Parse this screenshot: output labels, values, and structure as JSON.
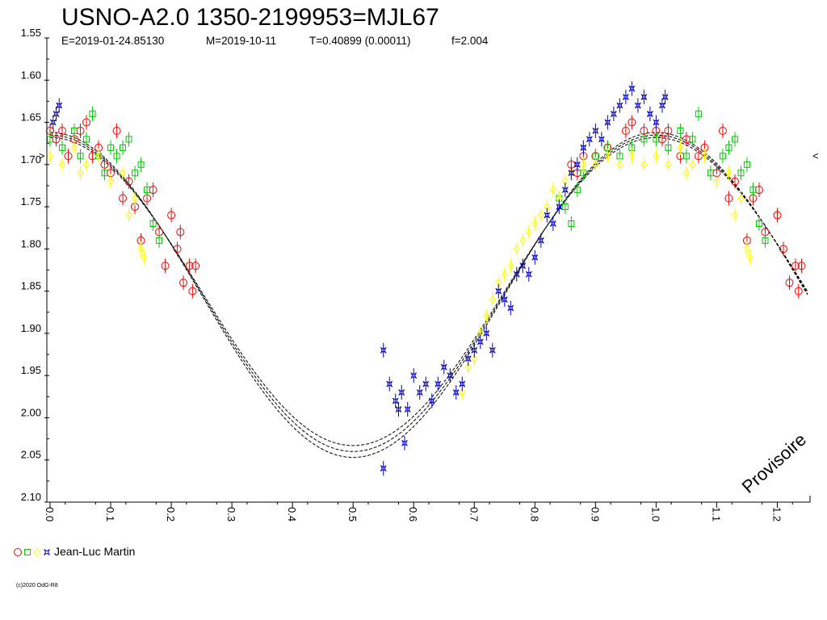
{
  "chart_data": {
    "type": "scatter",
    "title": "USNO-A2.0 1350-2199953=MJL67",
    "subtitle": {
      "epoch": "E=2019-01-24.85130",
      "mean_date": "M=2019-10-11",
      "period": "T=0.40899 (0.00011)",
      "frequency": "f=2.004"
    },
    "xlabel": "",
    "ylabel": "",
    "xlim": [
      0.0,
      1.25
    ],
    "ylim": [
      1.55,
      2.1
    ],
    "y_inverted": true,
    "grid": false,
    "x_ticks": [
      "0.0",
      "0.1",
      "0.2",
      "0.3",
      "0.4",
      "0.5",
      "0.6",
      "0.7",
      "0.8",
      "0.9",
      "1.0",
      "1.1",
      "1.2"
    ],
    "y_ticks": [
      "1.55",
      "1.60",
      "1.65",
      "1.70",
      "1.75",
      "1.80",
      "1.85",
      "1.90",
      "1.95",
      "2.00",
      "2.05",
      "2.10"
    ],
    "max_marker_mag": 1.69,
    "fit_curve": {
      "shape": "sinusoid",
      "max_mag": 1.665,
      "min_mag": 2.04,
      "max_phase": 0.0,
      "min_phase": 0.5,
      "envelope": 0.005
    },
    "series": [
      {
        "name": "",
        "color": "#ff0000",
        "marker": "circle",
        "points": [
          [
            0.0,
            1.66
          ],
          [
            0.01,
            1.67
          ],
          [
            0.02,
            1.66
          ],
          [
            0.03,
            1.69
          ],
          [
            0.04,
            1.67
          ],
          [
            0.05,
            1.66
          ],
          [
            0.06,
            1.65
          ],
          [
            0.07,
            1.69
          ],
          [
            0.08,
            1.68
          ],
          [
            0.09,
            1.7
          ],
          [
            0.1,
            1.71
          ],
          [
            0.11,
            1.66
          ],
          [
            0.12,
            1.74
          ],
          [
            0.13,
            1.72
          ],
          [
            0.14,
            1.75
          ],
          [
            0.15,
            1.79
          ],
          [
            0.16,
            1.74
          ],
          [
            0.17,
            1.73
          ],
          [
            0.18,
            1.78
          ],
          [
            0.19,
            1.82
          ],
          [
            0.2,
            1.76
          ],
          [
            0.21,
            1.8
          ],
          [
            0.215,
            1.78
          ],
          [
            0.22,
            1.84
          ],
          [
            0.23,
            1.82
          ],
          [
            0.235,
            1.85
          ],
          [
            0.24,
            1.82
          ],
          [
            0.86,
            1.7
          ],
          [
            0.87,
            1.71
          ],
          [
            0.88,
            1.69
          ],
          [
            0.9,
            1.69
          ],
          [
            0.92,
            1.68
          ],
          [
            0.95,
            1.66
          ],
          [
            0.96,
            1.65
          ],
          [
            0.98,
            1.66
          ],
          [
            1.0,
            1.66
          ],
          [
            1.01,
            1.67
          ],
          [
            1.02,
            1.66
          ],
          [
            1.04,
            1.69
          ],
          [
            1.05,
            1.67
          ],
          [
            1.07,
            1.69
          ],
          [
            1.08,
            1.68
          ],
          [
            1.1,
            1.71
          ],
          [
            1.11,
            1.66
          ],
          [
            1.12,
            1.74
          ],
          [
            1.13,
            1.72
          ],
          [
            1.15,
            1.79
          ],
          [
            1.16,
            1.74
          ],
          [
            1.17,
            1.73
          ],
          [
            1.18,
            1.78
          ],
          [
            1.2,
            1.76
          ],
          [
            1.21,
            1.8
          ],
          [
            1.22,
            1.84
          ],
          [
            1.23,
            1.82
          ],
          [
            1.235,
            1.85
          ],
          [
            1.24,
            1.82
          ]
        ]
      },
      {
        "name": "",
        "color": "#00cc00",
        "marker": "square",
        "points": [
          [
            0.0,
            1.67
          ],
          [
            0.02,
            1.68
          ],
          [
            0.04,
            1.66
          ],
          [
            0.05,
            1.69
          ],
          [
            0.06,
            1.67
          ],
          [
            0.07,
            1.64
          ],
          [
            0.08,
            1.69
          ],
          [
            0.09,
            1.71
          ],
          [
            0.1,
            1.68
          ],
          [
            0.11,
            1.69
          ],
          [
            0.12,
            1.68
          ],
          [
            0.13,
            1.67
          ],
          [
            0.14,
            1.71
          ],
          [
            0.15,
            1.7
          ],
          [
            0.16,
            1.73
          ],
          [
            0.17,
            1.77
          ],
          [
            0.18,
            1.79
          ],
          [
            0.84,
            1.74
          ],
          [
            0.85,
            1.75
          ],
          [
            0.86,
            1.77
          ],
          [
            0.87,
            1.73
          ],
          [
            0.88,
            1.71
          ],
          [
            0.9,
            1.69
          ],
          [
            0.92,
            1.68
          ],
          [
            0.94,
            1.69
          ],
          [
            0.96,
            1.68
          ],
          [
            0.98,
            1.67
          ],
          [
            1.0,
            1.67
          ],
          [
            1.02,
            1.68
          ],
          [
            1.04,
            1.66
          ],
          [
            1.05,
            1.69
          ],
          [
            1.06,
            1.67
          ],
          [
            1.07,
            1.64
          ],
          [
            1.09,
            1.71
          ],
          [
            1.11,
            1.69
          ],
          [
            1.12,
            1.68
          ],
          [
            1.13,
            1.67
          ],
          [
            1.14,
            1.71
          ],
          [
            1.15,
            1.7
          ],
          [
            1.16,
            1.73
          ],
          [
            1.17,
            1.77
          ],
          [
            1.18,
            1.79
          ]
        ]
      },
      {
        "name": "",
        "color": "#ffff00",
        "marker": "diamond",
        "points": [
          [
            0.0,
            1.69
          ],
          [
            0.02,
            1.7
          ],
          [
            0.04,
            1.68
          ],
          [
            0.05,
            1.71
          ],
          [
            0.06,
            1.7
          ],
          [
            0.08,
            1.69
          ],
          [
            0.1,
            1.72
          ],
          [
            0.12,
            1.71
          ],
          [
            0.13,
            1.76
          ],
          [
            0.14,
            1.74
          ],
          [
            0.15,
            1.8
          ],
          [
            0.155,
            1.81
          ],
          [
            0.68,
            1.97
          ],
          [
            0.69,
            1.94
          ],
          [
            0.7,
            1.93
          ],
          [
            0.71,
            1.9
          ],
          [
            0.72,
            1.88
          ],
          [
            0.73,
            1.86
          ],
          [
            0.74,
            1.84
          ],
          [
            0.75,
            1.83
          ],
          [
            0.76,
            1.82
          ],
          [
            0.77,
            1.8
          ],
          [
            0.78,
            1.79
          ],
          [
            0.79,
            1.78
          ],
          [
            0.8,
            1.77
          ],
          [
            0.81,
            1.76
          ],
          [
            0.82,
            1.75
          ],
          [
            0.83,
            1.73
          ],
          [
            0.84,
            1.74
          ],
          [
            0.85,
            1.72
          ],
          [
            0.86,
            1.71
          ],
          [
            0.88,
            1.7
          ],
          [
            0.9,
            1.7
          ],
          [
            0.92,
            1.69
          ],
          [
            0.94,
            1.7
          ],
          [
            0.96,
            1.69
          ],
          [
            0.98,
            1.7
          ],
          [
            1.0,
            1.69
          ],
          [
            1.02,
            1.7
          ],
          [
            1.04,
            1.68
          ],
          [
            1.05,
            1.71
          ],
          [
            1.06,
            1.7
          ],
          [
            1.08,
            1.69
          ],
          [
            1.1,
            1.72
          ],
          [
            1.12,
            1.71
          ],
          [
            1.13,
            1.76
          ],
          [
            1.14,
            1.74
          ],
          [
            1.15,
            1.8
          ],
          [
            1.155,
            1.81
          ]
        ]
      },
      {
        "name": "Jean-Luc Martin",
        "color": "#0000cc",
        "marker": "star",
        "points": [
          [
            0.005,
            1.65
          ],
          [
            0.01,
            1.64
          ],
          [
            0.015,
            1.63
          ],
          [
            0.55,
            1.92
          ],
          [
            0.55,
            2.06
          ],
          [
            0.56,
            1.96
          ],
          [
            0.57,
            1.98
          ],
          [
            0.575,
            1.99
          ],
          [
            0.58,
            1.97
          ],
          [
            0.585,
            2.03
          ],
          [
            0.59,
            1.99
          ],
          [
            0.6,
            1.95
          ],
          [
            0.61,
            1.97
          ],
          [
            0.62,
            1.96
          ],
          [
            0.63,
            1.98
          ],
          [
            0.64,
            1.96
          ],
          [
            0.65,
            1.94
          ],
          [
            0.66,
            1.95
          ],
          [
            0.67,
            1.97
          ],
          [
            0.68,
            1.96
          ],
          [
            0.69,
            1.93
          ],
          [
            0.7,
            1.92
          ],
          [
            0.71,
            1.91
          ],
          [
            0.72,
            1.9
          ],
          [
            0.73,
            1.92
          ],
          [
            0.74,
            1.85
          ],
          [
            0.75,
            1.86
          ],
          [
            0.76,
            1.87
          ],
          [
            0.77,
            1.83
          ],
          [
            0.78,
            1.82
          ],
          [
            0.79,
            1.83
          ],
          [
            0.8,
            1.81
          ],
          [
            0.81,
            1.79
          ],
          [
            0.82,
            1.76
          ],
          [
            0.83,
            1.77
          ],
          [
            0.84,
            1.75
          ],
          [
            0.85,
            1.73
          ],
          [
            0.86,
            1.71
          ],
          [
            0.87,
            1.7
          ],
          [
            0.88,
            1.68
          ],
          [
            0.89,
            1.67
          ],
          [
            0.9,
            1.66
          ],
          [
            0.91,
            1.67
          ],
          [
            0.92,
            1.65
          ],
          [
            0.93,
            1.64
          ],
          [
            0.94,
            1.63
          ],
          [
            0.95,
            1.62
          ],
          [
            0.96,
            1.61
          ],
          [
            0.97,
            1.63
          ],
          [
            0.98,
            1.62
          ],
          [
            0.99,
            1.64
          ],
          [
            1.0,
            1.65
          ],
          [
            1.01,
            1.63
          ],
          [
            1.015,
            1.62
          ]
        ]
      }
    ],
    "legend": {
      "label": "Jean-Luc Martin",
      "placement": "bottom-left"
    },
    "watermark": "Provisoire",
    "copyright": "(c)2020 OdG-R8"
  }
}
